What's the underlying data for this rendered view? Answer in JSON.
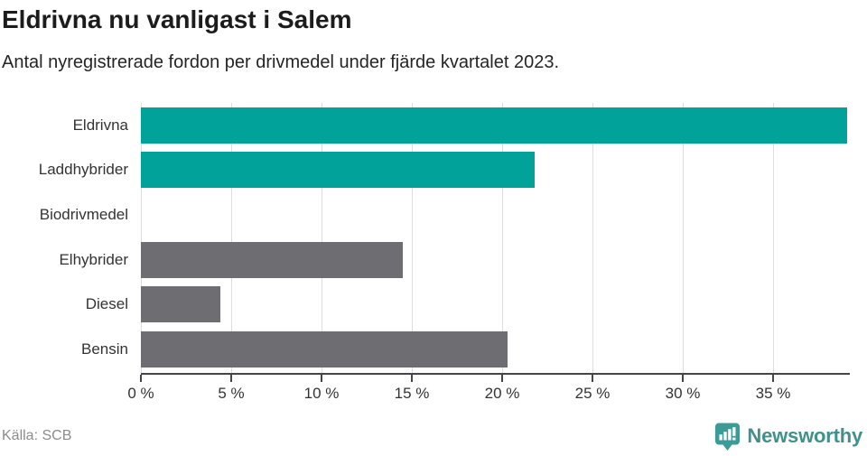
{
  "header": {
    "title": "Eldrivna nu vanligast i Salem",
    "subtitle": "Antal nyregistrerade fordon per drivmedel under fjärde kvartalet 2023."
  },
  "footer": {
    "source": "Källa: SCB",
    "brand_name": "Newsworthy"
  },
  "colors": {
    "highlight_teal": "#00a29a",
    "neutral_gray": "#6d6d72",
    "gridline": "#dcdcdc",
    "axis": "#454545",
    "brand_icon": "#3a9b97",
    "brand_text": "#41908c"
  },
  "icons": {
    "brand_logo": "newsworthy-speech-bubble-bar-chart-icon"
  },
  "chart_data": {
    "type": "bar",
    "orientation": "horizontal",
    "title": "Eldrivna nu vanligast i Salem",
    "subtitle": "Antal nyregistrerade fordon per drivmedel under fjärde kvartalet 2023.",
    "categories": [
      "Eldrivna",
      "Laddhybrider",
      "Biodrivmedel",
      "Elhybrider",
      "Diesel",
      "Bensin"
    ],
    "values": [
      39.1,
      21.8,
      0,
      14.5,
      4.4,
      20.3
    ],
    "bar_colors": [
      "#00a29a",
      "#00a29a",
      "#6d6d72",
      "#6d6d72",
      "#6d6d72",
      "#6d6d72"
    ],
    "unit": "%",
    "xlim": [
      0,
      39.25
    ],
    "ticks": [
      0,
      5,
      10,
      15,
      20,
      25,
      30,
      35
    ],
    "tick_labels": [
      "0 %",
      "5 %",
      "10 %",
      "15 %",
      "20 %",
      "25 %",
      "30 %",
      "35 %"
    ],
    "grid": true,
    "legend": "none"
  }
}
